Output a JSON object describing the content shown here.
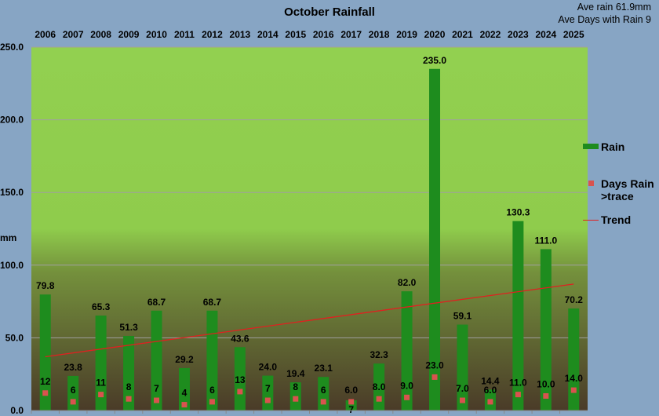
{
  "chart_data": {
    "type": "bar",
    "title": "October Rainfall",
    "ylabel": "mm",
    "ylim": [
      0,
      250
    ],
    "yticks": [
      "0.0",
      "50.0",
      "100.0",
      "150.0",
      "200.0",
      "250.0"
    ],
    "ytick_values": [
      0,
      50,
      100,
      150,
      200,
      250
    ],
    "categories": [
      "2006",
      "2007",
      "2008",
      "2009",
      "2010",
      "2011",
      "2012",
      "2013",
      "2014",
      "2015",
      "2016",
      "2017",
      "2018",
      "2019",
      "2020",
      "2021",
      "2022",
      "2023",
      "2024",
      "2025"
    ],
    "series": [
      {
        "name": "Rain",
        "type": "bar",
        "color": "#1e8c1e",
        "values": [
          79.8,
          23.8,
          65.3,
          51.3,
          68.7,
          29.2,
          68.7,
          43.6,
          24.0,
          19.4,
          23.1,
          7,
          32.3,
          82.0,
          235.0,
          59.1,
          14.4,
          130.3,
          111.0,
          70.2
        ],
        "labels": [
          "79.8",
          "23.8",
          "65.3",
          "51.3",
          "68.7",
          "29.2",
          "68.7",
          "43.6",
          "24.0",
          "19.4",
          "23.1",
          "7",
          "32.3",
          "82.0",
          "235.0",
          "59.1",
          "14.4",
          "130.3",
          "111.0",
          "70.2"
        ]
      },
      {
        "name": "Days Rain >trace",
        "type": "marker",
        "color": "#d9534f",
        "values": [
          12,
          6,
          11,
          8,
          7,
          4,
          6,
          13,
          7,
          8,
          6,
          6,
          8,
          9,
          23,
          7,
          6,
          11,
          10,
          14
        ],
        "labels": [
          "12",
          "6",
          "11",
          "8",
          "7",
          "4",
          "6",
          "13",
          "7",
          "8",
          "6",
          "6.0",
          "8.0",
          "9.0",
          "23.0",
          "7.0",
          "6.0",
          "11.0",
          "10.0",
          "14.0"
        ]
      },
      {
        "name": "Trend",
        "type": "line",
        "color": "#e02020",
        "start": 37,
        "end": 87
      }
    ],
    "legend": [
      "Rain",
      "Days Rain >trace",
      "Trend"
    ],
    "legend_position": "right",
    "grid": true
  },
  "annotations": {
    "ave_rain": "Ave rain 61.9mm",
    "ave_days": "Ave Days with Rain 9"
  }
}
